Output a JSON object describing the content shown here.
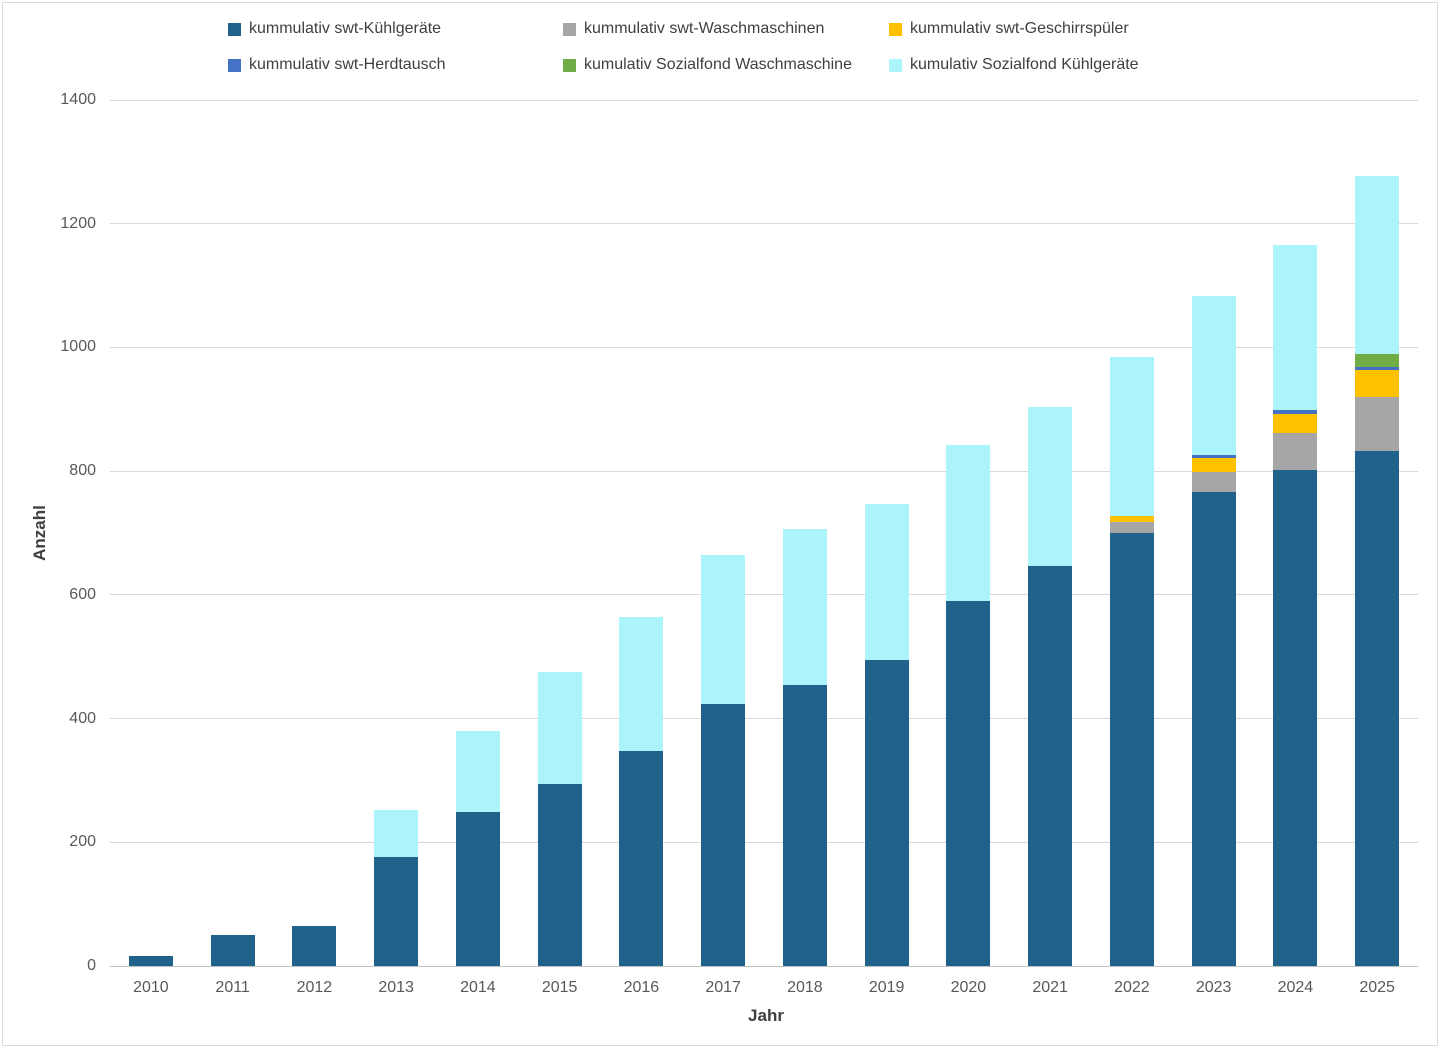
{
  "chart": {
    "background": "#ffffff",
    "border_color": "#d9d9d9",
    "gridline_color": "#d9d9d9",
    "zero_axis_color": "#bfbfbf",
    "tick_label_color": "#595959",
    "legend_label_color": "#404040"
  },
  "chart_data": {
    "type": "bar",
    "stacked": true,
    "title": "",
    "xlabel": "Jahr",
    "ylabel": "Anzahl",
    "ylim": [
      0,
      1400
    ],
    "yticks": [
      0,
      200,
      400,
      600,
      800,
      1000,
      1200,
      1400
    ],
    "grid": true,
    "legend_position": "top",
    "legend_rows": [
      [
        0,
        1,
        2
      ],
      [
        3,
        4,
        5
      ]
    ],
    "categories": [
      "2010",
      "2011",
      "2012",
      "2013",
      "2014",
      "2015",
      "2016",
      "2017",
      "2018",
      "2019",
      "2020",
      "2021",
      "2022",
      "2023",
      "2024",
      "2025"
    ],
    "series": [
      {
        "name": "kummulativ swt-Kühlgeräte",
        "color": "#20628c",
        "values": [
          16,
          50,
          65,
          177,
          249,
          295,
          348,
          423,
          455,
          495,
          590,
          647,
          700,
          767,
          802,
          832
        ]
      },
      {
        "name": "kummulativ swt-Waschmaschinen",
        "color": "#a6a6a6",
        "values": [
          0,
          0,
          0,
          0,
          0,
          0,
          0,
          0,
          0,
          0,
          0,
          0,
          18,
          32,
          59,
          88
        ]
      },
      {
        "name": "kummulativ swt-Geschirrspüler",
        "color": "#ffc000",
        "values": [
          0,
          0,
          0,
          0,
          0,
          0,
          0,
          0,
          0,
          0,
          0,
          0,
          10,
          23,
          32,
          43
        ]
      },
      {
        "name": "kummulativ swt-Herdtausch",
        "color": "#4472c4",
        "values": [
          0,
          0,
          0,
          0,
          0,
          0,
          0,
          0,
          0,
          0,
          0,
          0,
          0,
          4,
          6,
          6
        ]
      },
      {
        "name": "kumulativ Sozialfond Waschmaschine",
        "color": "#70ad47",
        "values": [
          0,
          0,
          0,
          0,
          0,
          0,
          0,
          0,
          0,
          0,
          0,
          0,
          0,
          0,
          0,
          20
        ]
      },
      {
        "name": "kumulativ Sozialfond Kühlgeräte",
        "color": "#abf5fa",
        "values": [
          0,
          0,
          0,
          76,
          131,
          180,
          217,
          242,
          251,
          252,
          252,
          256,
          257,
          257,
          266,
          288
        ]
      }
    ]
  }
}
